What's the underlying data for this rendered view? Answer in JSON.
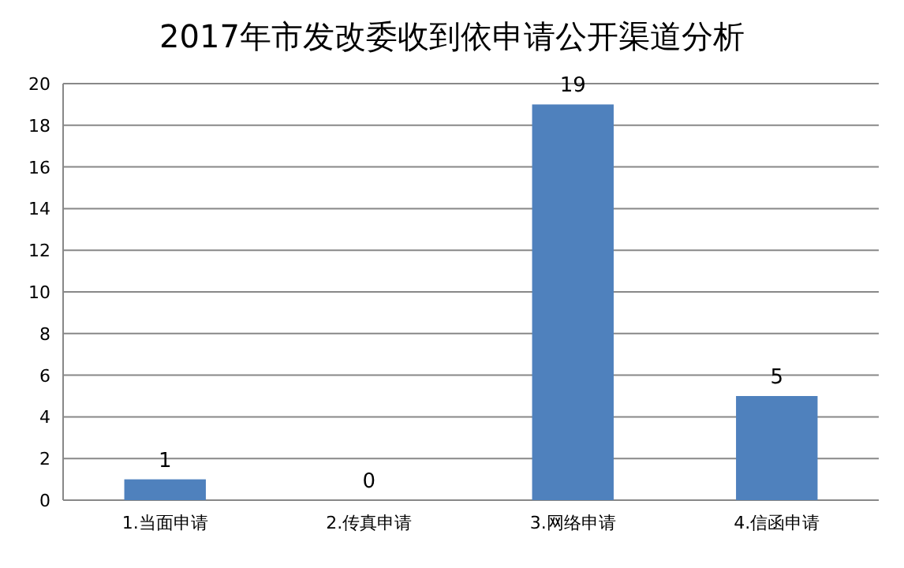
{
  "chart_data": {
    "type": "bar",
    "title": "2017年市发改委收到依申请公开渠道分析",
    "categories": [
      "1.当面申请",
      "2.传真申请",
      "3.网络申请",
      "4.信函申请"
    ],
    "values": [
      1,
      0,
      19,
      5
    ],
    "color": "#4f81bd",
    "ylim": [
      0,
      20
    ],
    "yticks": [
      0,
      2,
      4,
      6,
      8,
      10,
      12,
      14,
      16,
      18,
      20
    ],
    "grid": "y",
    "data_labels": true
  }
}
